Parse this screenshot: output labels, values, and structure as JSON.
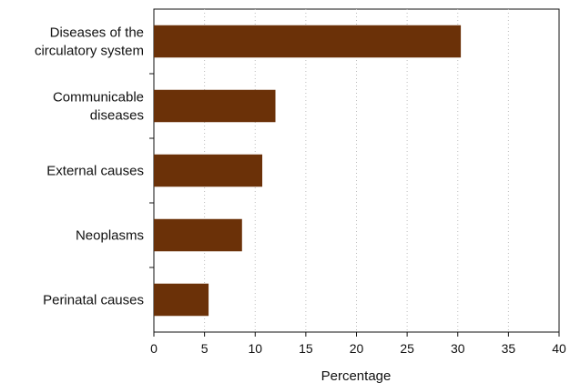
{
  "chart_data": {
    "type": "bar",
    "orientation": "horizontal",
    "categories": [
      [
        "Diseases of the",
        "circulatory system"
      ],
      [
        "Communicable",
        "diseases"
      ],
      [
        "External causes"
      ],
      [
        "Neoplasms"
      ],
      [
        "Perinatal causes"
      ]
    ],
    "values": [
      30.3,
      12.0,
      10.7,
      8.7,
      5.4
    ],
    "title": "",
    "xlabel": "Percentage",
    "ylabel": "",
    "xlim": [
      0,
      40
    ],
    "xticks": [
      "0",
      "5",
      "10",
      "15",
      "20",
      "25",
      "30",
      "35",
      "40"
    ],
    "grid": "vertical dotted",
    "legend": "none",
    "bar_color": "#6b3108"
  }
}
